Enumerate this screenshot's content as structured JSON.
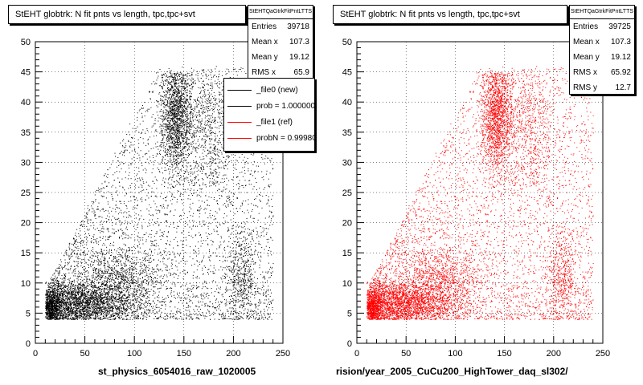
{
  "colors": {
    "ref_color": "#ff0000",
    "new_color": "#000000"
  },
  "chart_data": [
    {
      "type": "scatter",
      "title": "StEHT globtrk: N fit pnts vs length, tpc,tpc+svt",
      "xlabel": "st_physics_6054016_raw_1020005",
      "ylabel": "",
      "xlim": [
        0,
        250
      ],
      "ylim": [
        0,
        50
      ],
      "xticks": [
        0,
        50,
        100,
        150,
        200,
        250
      ],
      "yticks": [
        0,
        5,
        10,
        15,
        20,
        25,
        30,
        35,
        40,
        45,
        50
      ],
      "grid": true,
      "marker_color": "#000000",
      "stats": {
        "name": "StEHTQaGtrkFitPntLTTS",
        "rows": [
          {
            "label": "Entries",
            "value": "39718"
          },
          {
            "label": "Mean x",
            "value": "107.3"
          },
          {
            "label": "Mean y",
            "value": "19.12"
          },
          {
            "label": "RMS x",
            "value": "65.9"
          }
        ]
      },
      "legend": {
        "placement": "top-right",
        "entries": [
          {
            "label": "_file0 (new)",
            "color": "#000000"
          },
          {
            "label": "prob = 1.000000",
            "color": "#000000"
          },
          {
            "label": "_file1 (ref)",
            "color": "#ff0000"
          },
          {
            "label": "probN = 0.999800",
            "color": "#ff0000"
          }
        ]
      }
    },
    {
      "type": "scatter",
      "title": "StEHT globtrk: N fit pnts vs length, tpc,tpc+svt",
      "xlabel": "rision/year_2005_CuCu200_HighTower_daq_sl302/",
      "ylabel": "",
      "xlim": [
        0,
        250
      ],
      "ylim": [
        0,
        50
      ],
      "xticks": [
        0,
        50,
        100,
        150,
        200,
        250
      ],
      "yticks": [
        0,
        5,
        10,
        15,
        20,
        25,
        30,
        35,
        40,
        45,
        50
      ],
      "grid": true,
      "marker_color": "#ff0000",
      "stats": {
        "name": "StEHTQaGtrkFitPntLTTS",
        "rows": [
          {
            "label": "Entries",
            "value": "39725"
          },
          {
            "label": "Mean x",
            "value": "107.3"
          },
          {
            "label": "Mean y",
            "value": "19.12"
          },
          {
            "label": "RMS x",
            "value": "65.92"
          },
          {
            "label": "RMS y",
            "value": "12.7"
          }
        ]
      }
    }
  ]
}
